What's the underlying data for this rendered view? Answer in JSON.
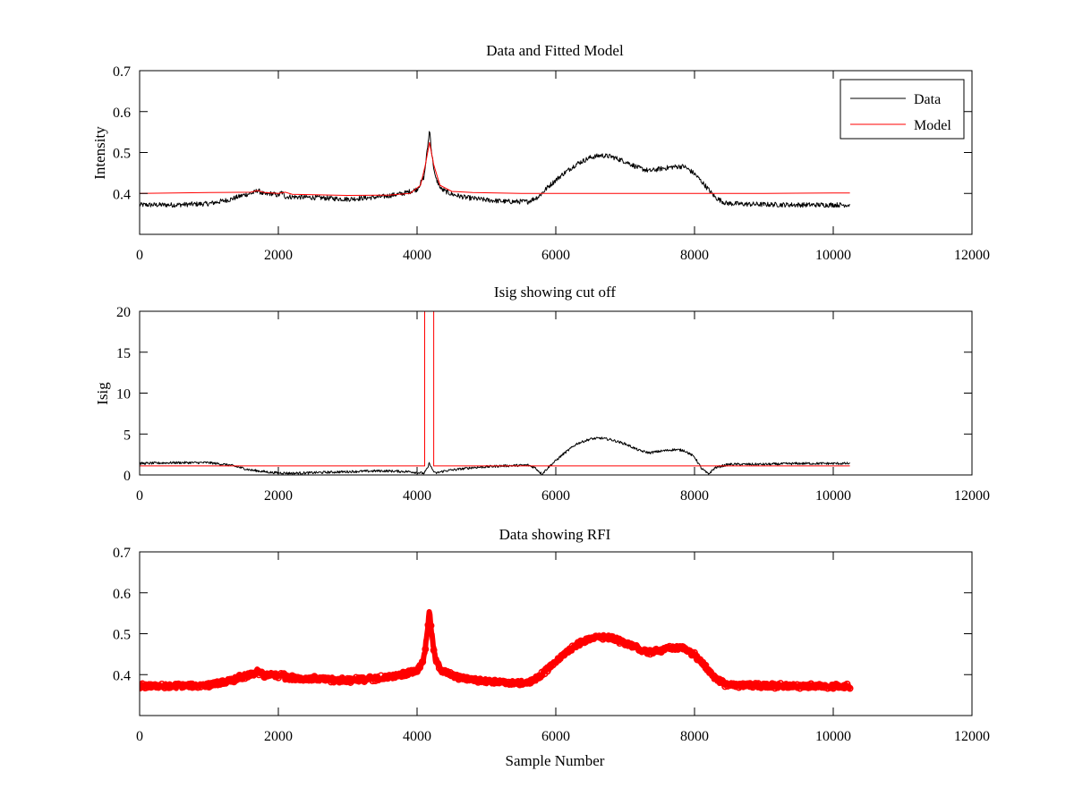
{
  "colors": {
    "data": "#000000",
    "model": "#ff0000",
    "rfi": "#ff0000",
    "axes": "#000000",
    "background": "#ffffff"
  },
  "chart_data": [
    {
      "type": "line",
      "title": "Data and Fitted Model",
      "xlabel": "",
      "ylabel": "Intensity",
      "xlim": [
        0,
        12000
      ],
      "ylim": [
        0.3,
        0.7
      ],
      "xticks": [
        0,
        2000,
        4000,
        6000,
        8000,
        10000,
        12000
      ],
      "yticks": [
        0.4,
        0.5,
        0.6,
        0.7
      ],
      "grid": false,
      "legend": {
        "placement": "top-right",
        "entries": [
          "Data",
          "Model"
        ]
      },
      "series": [
        {
          "name": "Data",
          "color": "#000000",
          "noise": 0.006,
          "x": [
            0,
            500,
            1000,
            1300,
            1500,
            1650,
            1700,
            1800,
            1900,
            2000,
            2050,
            2100,
            2500,
            3000,
            3500,
            3800,
            4000,
            4100,
            4150,
            4180,
            4210,
            4260,
            4350,
            4500,
            4700,
            5000,
            5300,
            5600,
            5750,
            5900,
            6100,
            6300,
            6500,
            6650,
            6800,
            7000,
            7200,
            7350,
            7500,
            7700,
            7850,
            8000,
            8150,
            8300,
            8450,
            8700,
            9000,
            9500,
            10000,
            10240
          ],
          "y": [
            0.372,
            0.372,
            0.375,
            0.385,
            0.396,
            0.402,
            0.408,
            0.397,
            0.4,
            0.395,
            0.403,
            0.392,
            0.39,
            0.386,
            0.392,
            0.4,
            0.41,
            0.44,
            0.51,
            0.556,
            0.5,
            0.44,
            0.41,
            0.398,
            0.39,
            0.384,
            0.38,
            0.38,
            0.392,
            0.418,
            0.447,
            0.472,
            0.488,
            0.493,
            0.49,
            0.478,
            0.462,
            0.455,
            0.46,
            0.465,
            0.466,
            0.448,
            0.42,
            0.39,
            0.376,
            0.374,
            0.373,
            0.372,
            0.372,
            0.372
          ]
        },
        {
          "name": "Model",
          "color": "#ff0000",
          "noise": 0,
          "x": [
            0,
            1000,
            1600,
            1700,
            1800,
            2000,
            2100,
            2200,
            3000,
            3600,
            3900,
            4050,
            4120,
            4180,
            4240,
            4330,
            4500,
            4800,
            5500,
            6000,
            7000,
            8000,
            9000,
            10000,
            10240
          ],
          "y": [
            0.4,
            0.402,
            0.403,
            0.407,
            0.402,
            0.4,
            0.403,
            0.398,
            0.395,
            0.396,
            0.4,
            0.42,
            0.47,
            0.525,
            0.47,
            0.42,
            0.405,
            0.402,
            0.4,
            0.4,
            0.4,
            0.4,
            0.4,
            0.401,
            0.401
          ]
        }
      ]
    },
    {
      "type": "line",
      "title": "Isig showing cut off",
      "xlabel": "",
      "ylabel": "Isig",
      "xlim": [
        0,
        12000
      ],
      "ylim": [
        0,
        20
      ],
      "xticks": [
        0,
        2000,
        4000,
        6000,
        8000,
        10000,
        12000
      ],
      "yticks": [
        0,
        5,
        10,
        15,
        20
      ],
      "grid": false,
      "series": [
        {
          "name": "Isig",
          "color": "#000000",
          "noise": 0.15,
          "x": [
            0,
            500,
            1000,
            1300,
            1600,
            1900,
            2200,
            2600,
            3000,
            3500,
            3900,
            4100,
            4150,
            4180,
            4210,
            4260,
            4400,
            4800,
            5200,
            5600,
            5700,
            5800,
            5900,
            6100,
            6300,
            6500,
            6650,
            6800,
            7000,
            7200,
            7350,
            7500,
            7700,
            7850,
            8000,
            8100,
            8200,
            8300,
            8500,
            9000,
            9500,
            10000,
            10240
          ],
          "y": [
            1.4,
            1.5,
            1.5,
            1.2,
            0.6,
            0.3,
            0.2,
            0.3,
            0.4,
            0.5,
            0.4,
            0.2,
            0.8,
            1.5,
            0.8,
            0.2,
            0.5,
            0.9,
            1.1,
            1.2,
            0.9,
            0.1,
            1.0,
            2.5,
            3.8,
            4.4,
            4.5,
            4.3,
            3.8,
            3.0,
            2.7,
            2.9,
            3.1,
            3.0,
            2.2,
            0.8,
            0.1,
            0.9,
            1.3,
            1.3,
            1.4,
            1.4,
            1.4
          ]
        },
        {
          "name": "Cut off",
          "color": "#ff0000",
          "noise": 0,
          "x": [
            0,
            4110,
            4110,
            4240,
            4240,
            10240
          ],
          "y": [
            1.1,
            1.1,
            20,
            20,
            1.1,
            1.1
          ]
        }
      ]
    },
    {
      "type": "scatter",
      "title": "Data showing RFI",
      "xlabel": "Sample Number",
      "ylabel": "",
      "xlim": [
        0,
        12000
      ],
      "ylim": [
        0.3,
        0.7
      ],
      "xticks": [
        0,
        2000,
        4000,
        6000,
        8000,
        10000,
        12000
      ],
      "yticks": [
        0.4,
        0.5,
        0.6,
        0.7
      ],
      "grid": false,
      "series": [
        {
          "name": "RFI",
          "color": "#ff0000",
          "noise": 0.006,
          "x": [
            0,
            500,
            1000,
            1300,
            1500,
            1650,
            1700,
            1800,
            1900,
            2000,
            2050,
            2100,
            2500,
            3000,
            3500,
            3800,
            4000,
            4100,
            4150,
            4180,
            4210,
            4260,
            4350,
            4500,
            4700,
            5000,
            5300,
            5600,
            5750,
            5900,
            6100,
            6300,
            6500,
            6650,
            6800,
            7000,
            7200,
            7350,
            7500,
            7700,
            7850,
            8000,
            8150,
            8300,
            8450,
            8700,
            9000,
            9500,
            10000,
            10240
          ],
          "y": [
            0.372,
            0.372,
            0.375,
            0.385,
            0.396,
            0.402,
            0.408,
            0.397,
            0.4,
            0.395,
            0.403,
            0.392,
            0.39,
            0.386,
            0.392,
            0.4,
            0.41,
            0.44,
            0.51,
            0.556,
            0.5,
            0.44,
            0.41,
            0.398,
            0.39,
            0.384,
            0.38,
            0.38,
            0.392,
            0.418,
            0.447,
            0.472,
            0.488,
            0.493,
            0.49,
            0.478,
            0.462,
            0.455,
            0.46,
            0.465,
            0.466,
            0.448,
            0.42,
            0.39,
            0.376,
            0.374,
            0.373,
            0.372,
            0.372,
            0.372
          ]
        }
      ]
    }
  ]
}
